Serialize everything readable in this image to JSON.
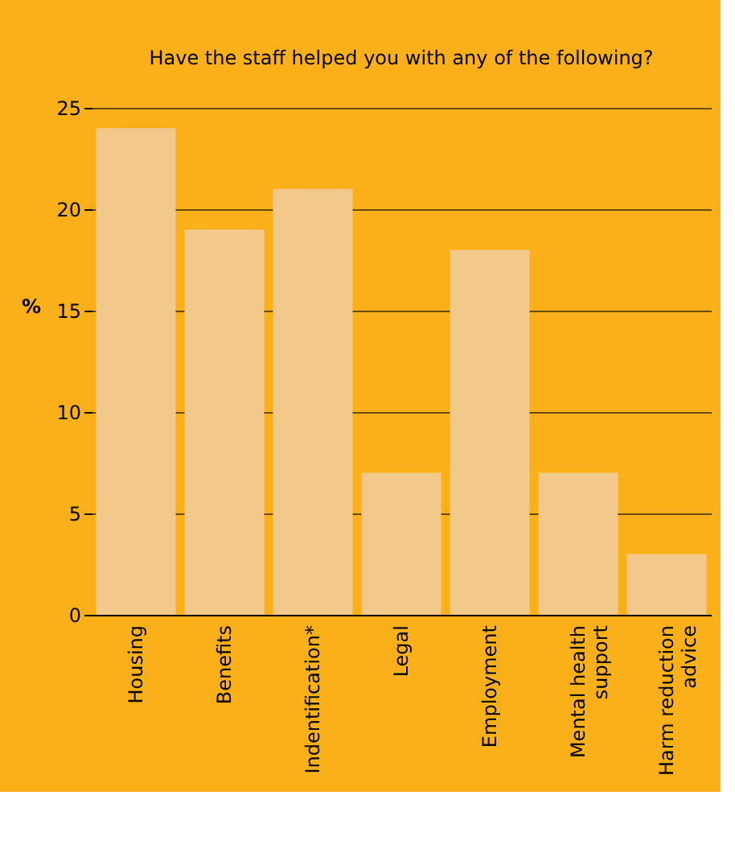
{
  "chart_data": {
    "type": "bar",
    "title": "Have the staff helped you with any of the following?",
    "ylabel": "%",
    "categories": [
      "Housing",
      "Benefits",
      "Indentification*",
      "Legal",
      "Employment",
      "Mental health support",
      "Harm reduction advice"
    ],
    "values": [
      24,
      19,
      21,
      7,
      18,
      7,
      3
    ],
    "color": "#f2c98a",
    "ylim": [
      0,
      25
    ],
    "yticks": [
      0,
      5,
      10,
      15,
      20,
      25
    ],
    "grid": "y"
  }
}
